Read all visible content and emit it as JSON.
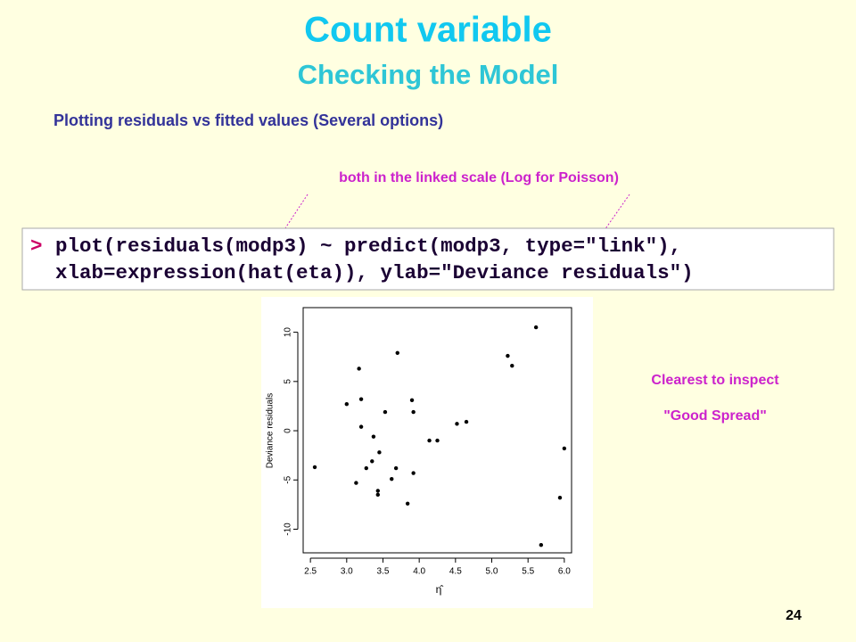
{
  "slide": {
    "title": "Count variable",
    "subtitle": "Checking the Model",
    "heading": "Plotting residuals vs fitted values (Several options)",
    "annotation": "both in the linked scale (Log for Poisson)",
    "code": {
      "prompt": ">",
      "lines": [
        "plot(residuals(modp3) ~ predict(modp3, type=\"link\"),",
        "xlab=expression(hat(eta)), ylab=\"Deviance residuals\")"
      ]
    },
    "notes": [
      "Clearest to inspect",
      "\"Good Spread\""
    ],
    "page_number": "24"
  },
  "chart_data": {
    "type": "scatter",
    "x_label": "η̂",
    "y_label": "Deviance residuals",
    "color": "#000000",
    "x": [
      2.56,
      3.0,
      3.13,
      3.17,
      3.2,
      3.2,
      3.27,
      3.35,
      3.37,
      3.43,
      3.43,
      3.45,
      3.53,
      3.62,
      3.68,
      3.7,
      3.84,
      3.9,
      3.92,
      3.92,
      4.14,
      4.25,
      4.52,
      4.65,
      5.22,
      5.28,
      5.61,
      5.68,
      5.94,
      6.0
    ],
    "values": [
      -3.7,
      2.7,
      -5.3,
      6.3,
      3.2,
      0.4,
      -3.8,
      -3.1,
      -0.6,
      -6.1,
      -6.5,
      -2.2,
      1.9,
      -4.9,
      -3.8,
      7.9,
      -7.4,
      3.1,
      1.9,
      -4.3,
      -1.0,
      -1.0,
      0.7,
      0.9,
      7.6,
      6.6,
      10.5,
      -11.6,
      -6.8,
      -1.8
    ],
    "xlim": [
      2.4,
      6.1
    ],
    "ylim": [
      -12.4,
      12.5
    ],
    "xticks": [
      2.5,
      {
        "value": 3,
        "label": "3.0"
      },
      3.5,
      {
        "value": 4,
        "label": "4.0"
      },
      4.5,
      {
        "value": 5,
        "label": "5.0"
      },
      5.5,
      {
        "value": 6,
        "label": "6.0"
      }
    ],
    "yticks": [
      -10,
      -5,
      0,
      5,
      10
    ]
  }
}
